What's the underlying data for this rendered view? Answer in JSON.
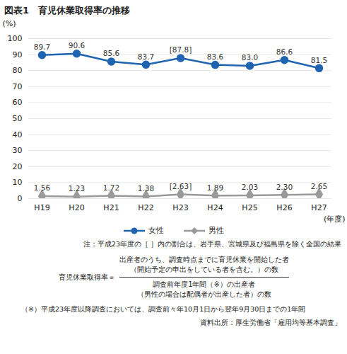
{
  "chart_data": {
    "type": "line",
    "title": "図表1　育児休業取得率の推移",
    "y_label": "(%)",
    "x_label": "(年度)",
    "categories": [
      "H19",
      "H20",
      "H21",
      "H22",
      "H23",
      "H24",
      "H25",
      "H26",
      "H27"
    ],
    "series": [
      {
        "name": "女性",
        "color": "#1f64b0",
        "marker": "circle",
        "values": [
          89.7,
          90.6,
          85.6,
          83.7,
          87.8,
          83.6,
          83.0,
          86.6,
          81.5
        ],
        "value_labels": [
          "89.7",
          "90.6",
          "85.6",
          "83.7",
          "[87.8]",
          "83.6",
          "83.0",
          "86.6",
          "81.5"
        ]
      },
      {
        "name": "男性",
        "color": "#9a9a9a",
        "marker": "diamond",
        "values": [
          1.56,
          1.23,
          1.72,
          1.38,
          2.63,
          1.89,
          2.03,
          2.3,
          2.65
        ],
        "value_labels": [
          "1.56",
          "1.23",
          "1.72",
          "1.38",
          "[2.63]",
          "1.89",
          "2.03",
          "2.30",
          "2.65"
        ]
      }
    ],
    "ylim": [
      0,
      100
    ],
    "yticks": [
      0,
      10,
      20,
      30,
      40,
      50,
      60,
      70,
      80,
      90,
      100
    ],
    "grid": true,
    "data_labels": true,
    "legend": "bottom",
    "annotations": {
      "note": "注：平成23年度の［ ］内の割合は、岩手県、宮城県及び福島県を除く全国の結果",
      "formula_left": "育児休業取得率＝",
      "formula_numerator": [
        "出産者のうち、調査時点までに育児休業を開始した者",
        "（開始予定の申出をしている者を含む。）の数"
      ],
      "formula_denominator": [
        "調査前年度1年間（※）の出産者",
        "（男性の場合は配偶者が出産した者）の数"
      ],
      "footnote": "（※）平成23年度以降調査においては、調査前々年10月1日から翌年9月30日までの1年間",
      "source": "資料出所：厚生労働省「雇用均等基本調査」"
    }
  }
}
